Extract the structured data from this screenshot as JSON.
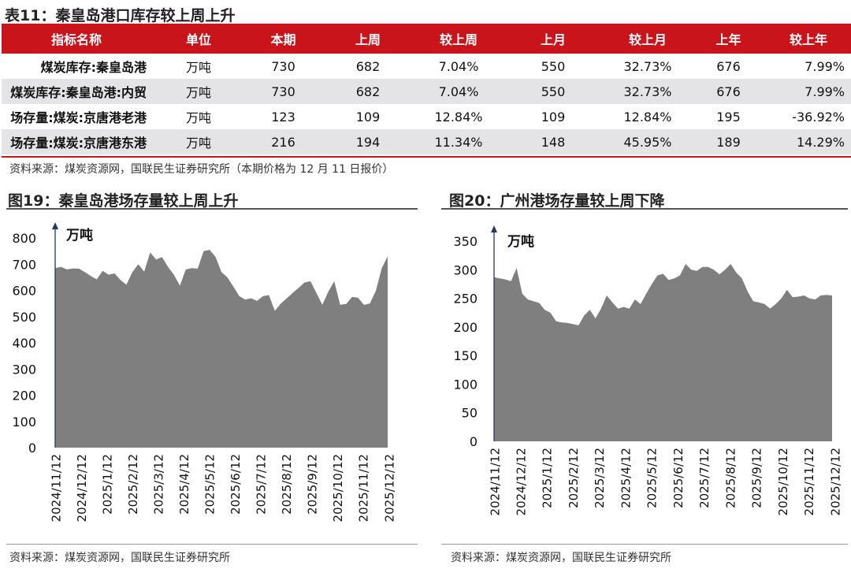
{
  "table": {
    "title": "表11：秦皇岛港口库存较上周上升",
    "headers": [
      "指标名称",
      "单位",
      "本期",
      "上周",
      "较上周",
      "上月",
      "较上月",
      "上年",
      "较上年"
    ],
    "rows": [
      [
        "煤炭库存:秦皇岛港",
        "万吨",
        "730",
        "682",
        "7.04%",
        "550",
        "32.73%",
        "676",
        "7.99%"
      ],
      [
        "煤炭库存:秦皇岛港:内贸",
        "万吨",
        "730",
        "682",
        "7.04%",
        "550",
        "32.73%",
        "676",
        "7.99%"
      ],
      [
        "场存量:煤炭:京唐港老港",
        "万吨",
        "123",
        "109",
        "12.84%",
        "109",
        "12.84%",
        "195",
        "-36.92%"
      ],
      [
        "场存量:煤炭:京唐港东港",
        "万吨",
        "216",
        "194",
        "11.34%",
        "148",
        "45.95%",
        "189",
        "14.29%"
      ]
    ],
    "source": "资料来源：煤炭资源网，国联民生证券研究所（本期价格为 12 月 11 日报价）"
  },
  "colors": {
    "header_bg": "#c8141a",
    "row_alt": "#e4e4e6",
    "area_fill": "#7f7f7f",
    "axis": "#1f3864"
  },
  "chart_data": [
    {
      "type": "area",
      "figure_title": "图19：秦皇岛港场存量较上周上升",
      "ylabel": "万吨",
      "ylim": [
        0,
        800
      ],
      "yticks": [
        0,
        100,
        200,
        300,
        400,
        500,
        600,
        700,
        800
      ],
      "x_start": "2024/11/12",
      "x_end": "2025/12/12",
      "xticks": [
        "2024/11/12",
        "2024/12/12",
        "2025/1/12",
        "2025/2/12",
        "2025/3/12",
        "2025/4/12",
        "2025/5/12",
        "2025/6/12",
        "2025/7/12",
        "2025/8/12",
        "2025/9/12",
        "2025/10/12",
        "2025/11/12",
        "2025/12/12"
      ],
      "values": [
        685,
        690,
        680,
        684,
        683,
        670,
        655,
        642,
        675,
        660,
        665,
        640,
        622,
        670,
        700,
        672,
        745,
        718,
        727,
        690,
        660,
        618,
        680,
        685,
        683,
        750,
        755,
        728,
        670,
        650,
        615,
        578,
        565,
        570,
        560,
        578,
        582,
        522,
        550,
        570,
        590,
        610,
        630,
        635,
        590,
        545,
        595,
        635,
        545,
        548,
        575,
        572,
        545,
        550,
        598,
        685,
        730
      ],
      "source": "资料来源：煤炭资源网，国联民生证券研究所"
    },
    {
      "type": "area",
      "figure_title": "图20：广州港场存量较上周下降",
      "ylabel": "万吨",
      "ylim": [
        0,
        350
      ],
      "yticks": [
        0,
        50,
        100,
        150,
        200,
        250,
        300,
        350
      ],
      "x_start": "2024/11/12",
      "x_end": "2025/12/12",
      "xticks": [
        "2024/11/12",
        "2024/12/12",
        "2025/1/12",
        "2025/2/12",
        "2025/3/12",
        "2025/4/12",
        "2025/5/12",
        "2025/6/12",
        "2025/7/12",
        "2025/8/12",
        "2025/9/12",
        "2025/10/12",
        "2025/11/12",
        "2025/12/12"
      ],
      "values": [
        287,
        285,
        283,
        280,
        303,
        258,
        248,
        245,
        242,
        230,
        225,
        210,
        208,
        207,
        205,
        203,
        220,
        230,
        215,
        232,
        255,
        243,
        232,
        235,
        232,
        248,
        240,
        258,
        275,
        290,
        293,
        282,
        285,
        290,
        310,
        300,
        298,
        305,
        305,
        300,
        292,
        300,
        310,
        295,
        285,
        262,
        245,
        243,
        240,
        232,
        240,
        250,
        265,
        252,
        253,
        255,
        250,
        248,
        255,
        256,
        255
      ],
      "source": "资料来源：煤炭资源网，国联民生证券研究所"
    }
  ]
}
